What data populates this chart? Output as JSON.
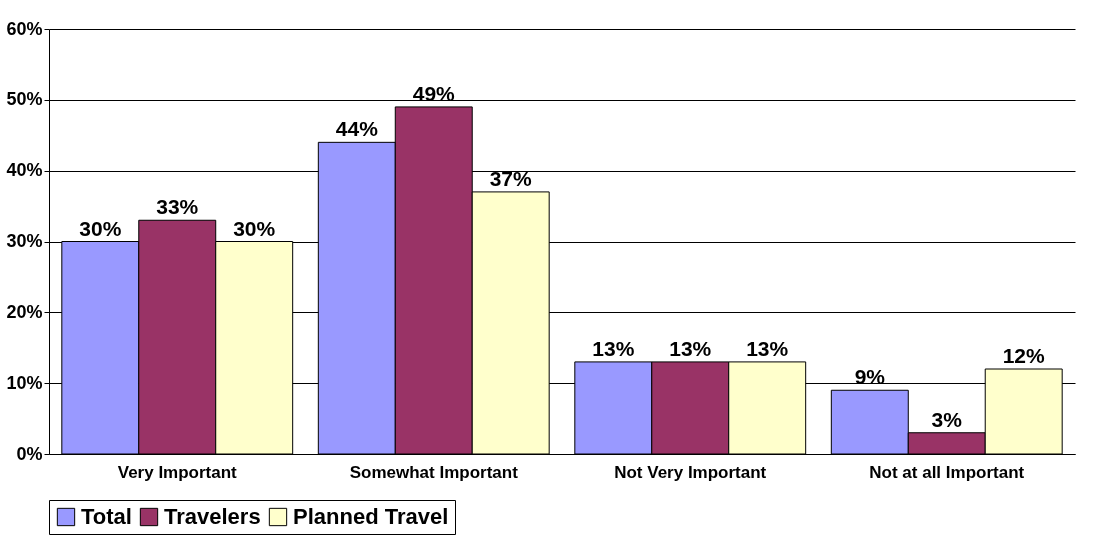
{
  "chart_data": {
    "type": "bar",
    "categories": [
      "Very Important",
      "Somewhat Important",
      "Not Very Important",
      "Not at all Important"
    ],
    "series": [
      {
        "name": "Total",
        "color": "#9999ff",
        "values": [
          30,
          44,
          13,
          9
        ],
        "value_labels": [
          "30%",
          "44%",
          "13%",
          "9%"
        ]
      },
      {
        "name": "Travelers",
        "color": "#993366",
        "values": [
          33,
          49,
          13,
          3
        ],
        "value_labels": [
          "33%",
          "49%",
          "13%",
          "3%"
        ]
      },
      {
        "name": "Planned Travel",
        "color": "#ffffcc",
        "values": [
          30,
          37,
          13,
          12
        ],
        "value_labels": [
          "30%",
          "37%",
          "13%",
          "12%"
        ]
      }
    ],
    "ylim": [
      0,
      60
    ],
    "yticks": [
      {
        "value": 0,
        "label": "0%"
      },
      {
        "value": 10,
        "label": "10%"
      },
      {
        "value": 20,
        "label": "20%"
      },
      {
        "value": 30,
        "label": "30%"
      },
      {
        "value": 40,
        "label": "40%"
      },
      {
        "value": 50,
        "label": "50%"
      },
      {
        "value": 60,
        "label": "60%"
      }
    ],
    "grid": "y",
    "legend": "bottom"
  }
}
